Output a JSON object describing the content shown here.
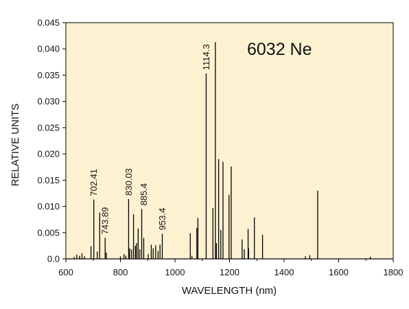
{
  "chart_data": {
    "type": "line",
    "annotation": "6032 Ne",
    "xlabel": "WAVELENGTH (nm)",
    "ylabel": "RELATIVE UNITS",
    "xlim": [
      600,
      1800
    ],
    "ylim": [
      0,
      0.045
    ],
    "xticks": [
      600,
      800,
      1000,
      1200,
      1400,
      1600,
      1800
    ],
    "yticks": [
      0.0,
      0.005,
      0.01,
      0.015,
      0.02,
      0.025,
      0.03,
      0.035,
      0.04,
      0.045
    ],
    "ytick_labels": [
      "0.0",
      "0.005",
      "0.010",
      "0.015",
      "0.020",
      "0.025",
      "0.030",
      "0.035",
      "0.040",
      "0.045"
    ],
    "background_color": "#fcf2d2",
    "line_color": "#000000",
    "grid": false,
    "legend": "none",
    "peaks": [
      {
        "x": 630,
        "y": 0.0004
      },
      {
        "x": 640,
        "y": 0.0008
      },
      {
        "x": 650,
        "y": 0.0006
      },
      {
        "x": 659,
        "y": 0.0011
      },
      {
        "x": 668,
        "y": 0.0005
      },
      {
        "x": 692,
        "y": 0.0024
      },
      {
        "x": 702.41,
        "y": 0.0113
      },
      {
        "x": 715,
        "y": 0.0014
      },
      {
        "x": 724,
        "y": 0.0088
      },
      {
        "x": 743.89,
        "y": 0.004
      },
      {
        "x": 748,
        "y": 0.0012
      },
      {
        "x": 800,
        "y": 0.0005
      },
      {
        "x": 813,
        "y": 0.0009
      },
      {
        "x": 820,
        "y": 0.0006
      },
      {
        "x": 830.03,
        "y": 0.0114
      },
      {
        "x": 834,
        "y": 0.002
      },
      {
        "x": 841,
        "y": 0.0018
      },
      {
        "x": 848,
        "y": 0.0085
      },
      {
        "x": 855,
        "y": 0.0025
      },
      {
        "x": 859,
        "y": 0.003
      },
      {
        "x": 865,
        "y": 0.0058
      },
      {
        "x": 871,
        "y": 0.0018
      },
      {
        "x": 878,
        "y": 0.0095
      },
      {
        "x": 885.4,
        "y": 0.004
      },
      {
        "x": 902,
        "y": 0.0009
      },
      {
        "x": 913,
        "y": 0.0027
      },
      {
        "x": 920,
        "y": 0.002
      },
      {
        "x": 929,
        "y": 0.0026
      },
      {
        "x": 938,
        "y": 0.0015
      },
      {
        "x": 945,
        "y": 0.0027
      },
      {
        "x": 953.4,
        "y": 0.0048
      },
      {
        "x": 1056,
        "y": 0.0049
      },
      {
        "x": 1062,
        "y": 0.0006
      },
      {
        "x": 1080,
        "y": 0.0059
      },
      {
        "x": 1084,
        "y": 0.0078
      },
      {
        "x": 1114.3,
        "y": 0.0353
      },
      {
        "x": 1139,
        "y": 0.0097
      },
      {
        "x": 1148,
        "y": 0.0413
      },
      {
        "x": 1152,
        "y": 0.003
      },
      {
        "x": 1160,
        "y": 0.019
      },
      {
        "x": 1168,
        "y": 0.0055
      },
      {
        "x": 1176,
        "y": 0.0185
      },
      {
        "x": 1198,
        "y": 0.0122
      },
      {
        "x": 1206,
        "y": 0.0176
      },
      {
        "x": 1246,
        "y": 0.0037
      },
      {
        "x": 1254,
        "y": 0.0018
      },
      {
        "x": 1268,
        "y": 0.0057
      },
      {
        "x": 1270,
        "y": 0.002
      },
      {
        "x": 1291,
        "y": 0.0079
      },
      {
        "x": 1321,
        "y": 0.0046
      },
      {
        "x": 1478,
        "y": 0.0005
      },
      {
        "x": 1494,
        "y": 0.0007
      },
      {
        "x": 1523,
        "y": 0.013
      },
      {
        "x": 1716,
        "y": 0.0004
      }
    ],
    "peak_labels": [
      {
        "x": 702.41,
        "text": "702.41"
      },
      {
        "x": 743.89,
        "text": "743.89"
      },
      {
        "x": 830.03,
        "text": "830.03"
      },
      {
        "x": 885.4,
        "text": "885.4"
      },
      {
        "x": 953.4,
        "text": "953.4"
      },
      {
        "x": 1114.3,
        "text": "1114.3"
      }
    ]
  }
}
